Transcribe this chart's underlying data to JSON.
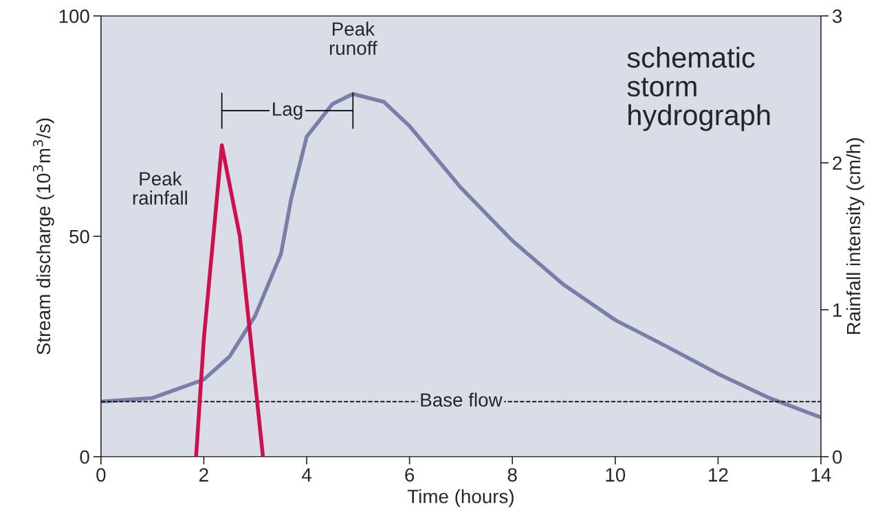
{
  "chart_data": {
    "type": "line",
    "xlabel": "Time (hours)",
    "ylabel": "Stream discharge (10$^{3}$m$^{3}$/s)",
    "y2label": "Rainfall intensity (cm/h)",
    "series": [
      {
        "x": [
          0,
          1,
          2,
          2.5,
          3,
          3.5,
          3.7,
          4,
          4.5,
          4.9,
          5.5,
          6,
          7,
          8,
          9,
          10,
          11,
          12,
          13,
          14
        ],
        "values": [
          12.5,
          13.3,
          17.5,
          22.7,
          32,
          46,
          58.6,
          72.6,
          80,
          82.3,
          80.5,
          75,
          61,
          49,
          39,
          31,
          25,
          18.8,
          13.3,
          8.9
        ],
        "color": "#7b7fa8"
      },
      {
        "x": [
          1.85,
          2.0,
          2.35,
          2.7,
          3.15
        ],
        "values": [
          0,
          0.8,
          2.12,
          1.5,
          0
        ],
        "color": "#d0104c",
        "axis": "y2"
      }
    ],
    "xlim": [
      0,
      14
    ],
    "xticks": [
      0,
      2,
      4,
      6,
      8,
      10,
      12,
      14
    ],
    "ylim": [
      0,
      100
    ],
    "yticks": [
      0,
      50,
      100
    ],
    "y2lim": [
      0,
      3
    ],
    "y2ticks": [
      0,
      1,
      2,
      3
    ],
    "ref_lines": [
      {
        "axis": "y",
        "value": 12.5,
        "label": "Base flow",
        "color": "#000000",
        "line_style": "dashed"
      }
    ],
    "annotations": [
      {
        "text": "Peak\nrainfall",
        "x": 2.35,
        "y": 70.7
      },
      {
        "text": "Peak\nrunoff",
        "x": 4.9,
        "y": 82.3
      },
      "Lag",
      "schematic\nstorm\nhydrograph"
    ],
    "marker": "none",
    "line_style": "solid",
    "grid": false,
    "legend": false
  }
}
